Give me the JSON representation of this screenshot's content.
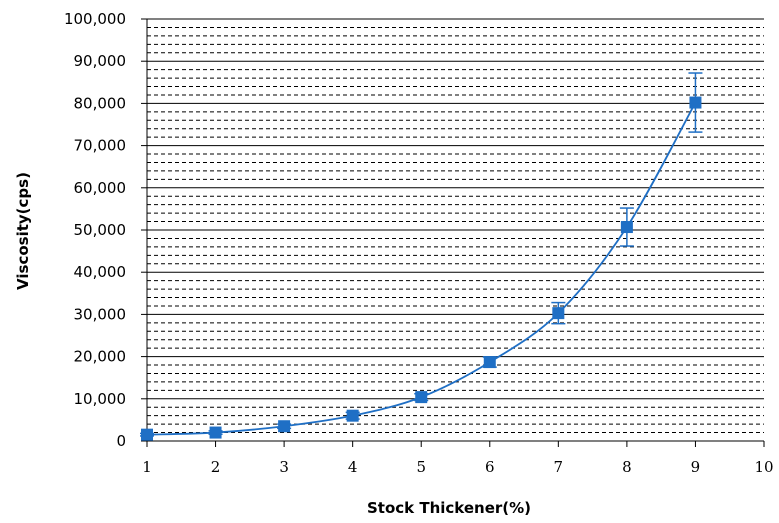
{
  "chart_data": {
    "type": "scatter",
    "title": "",
    "xlabel": "Stock Thickener(%)",
    "ylabel": "Viscosity(cps)",
    "xlim": [
      1,
      10
    ],
    "ylim": [
      0,
      100000
    ],
    "x_ticks": [
      1,
      2,
      3,
      4,
      5,
      6,
      7,
      8,
      9,
      10
    ],
    "x_tick_labels": [
      "1",
      "2",
      "3",
      "4",
      "5",
      "6",
      "7",
      "8",
      "9",
      "10"
    ],
    "y_ticks": [
      0,
      10000,
      20000,
      30000,
      40000,
      50000,
      60000,
      70000,
      80000,
      90000,
      100000
    ],
    "y_tick_labels": [
      "0",
      "10,000",
      "20,000",
      "30,000",
      "40,000",
      "50,000",
      "60,000",
      "70,000",
      "80,000",
      "90,000",
      "100,000"
    ],
    "grid": {
      "major_y": true,
      "minor_y": true,
      "minor_per_major": 4,
      "minor_style": "dashed"
    },
    "legend": "none",
    "series": [
      {
        "x": [
          1,
          2,
          3,
          4,
          5,
          6,
          7,
          8,
          9
        ],
        "y": [
          1500,
          2000,
          3500,
          6000,
          10400,
          18700,
          30300,
          50700,
          80200
        ],
        "error": [
          300,
          400,
          500,
          800,
          800,
          1200,
          2500,
          4500,
          7000
        ],
        "color": "#1F6FC5",
        "marker": "square",
        "line": "smooth"
      }
    ]
  }
}
